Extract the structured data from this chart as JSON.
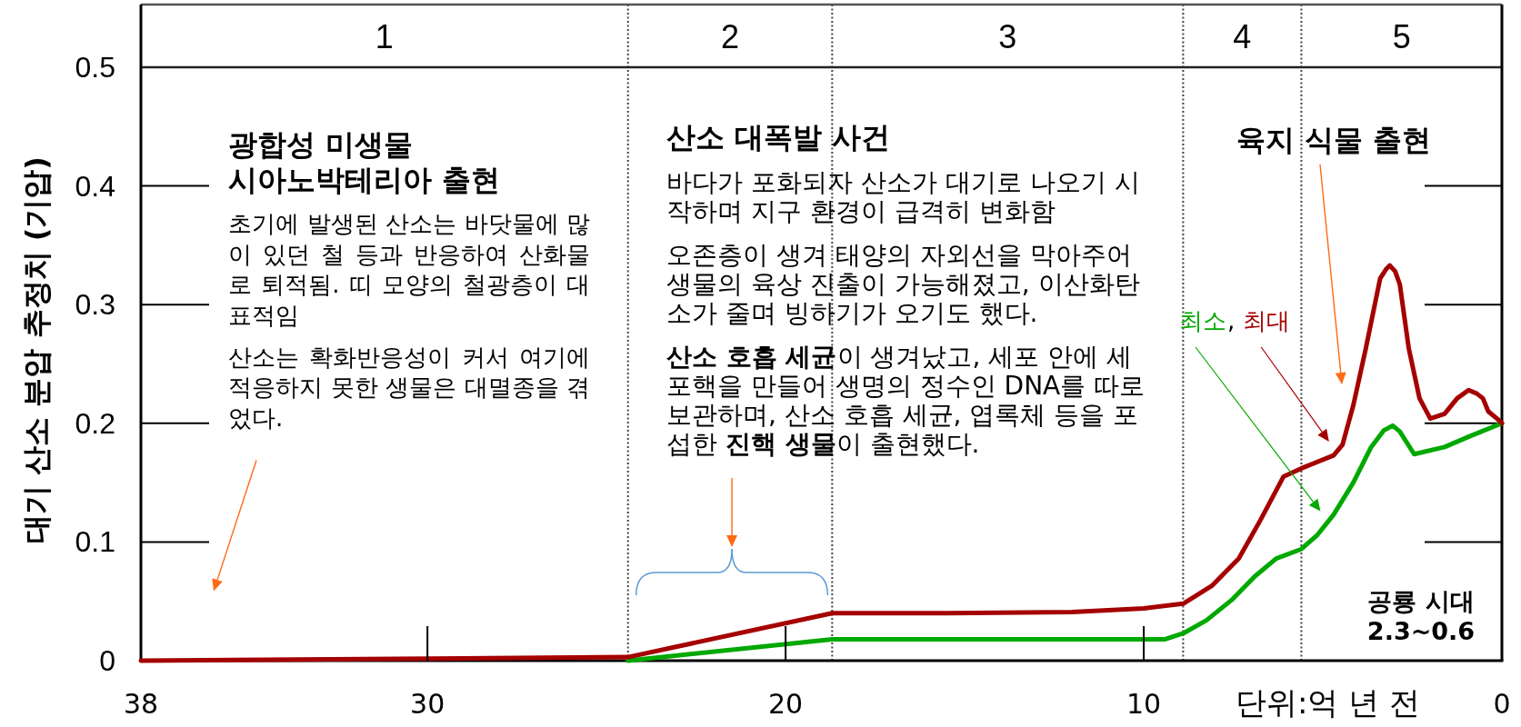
{
  "chart_data": {
    "type": "line",
    "xlabel": "단위:억 년 전",
    "ylabel": "대기 산소 분압 추정치 (기압)",
    "xlim": [
      38,
      0
    ],
    "ylim": [
      0,
      0.5
    ],
    "xticks": [
      38,
      30,
      20,
      10,
      0
    ],
    "yticks": [
      0,
      0.1,
      0.2,
      0.3,
      0.4,
      0.5
    ],
    "ref_lines": [
      {
        "axis": "x",
        "value": 24.4,
        "color": "#444444",
        "line_style": "dotted"
      },
      {
        "axis": "x",
        "value": 18.7,
        "color": "#444444",
        "line_style": "dotted"
      },
      {
        "axis": "x",
        "value": 8.9,
        "color": "#444444",
        "line_style": "dotted"
      },
      {
        "axis": "x",
        "value": 5.6,
        "color": "#444444",
        "line_style": "dotted"
      }
    ],
    "series": [
      {
        "name": "최소",
        "color": "#00a800",
        "x": [
          24.4,
          18.7,
          9.4,
          8.9,
          8.25,
          7.55,
          6.9,
          6.3,
          5.6,
          5.15,
          4.7,
          4.15,
          3.65,
          3.3,
          3.05,
          2.85,
          2.45,
          1.6,
          0.9,
          0
        ],
        "values": [
          0,
          0.018,
          0.018,
          0.023,
          0.034,
          0.051,
          0.071,
          0.086,
          0.094,
          0.106,
          0.123,
          0.15,
          0.18,
          0.194,
          0.198,
          0.193,
          0.174,
          0.18,
          0.189,
          0.2
        ]
      },
      {
        "name": "최대",
        "color": "#a50000",
        "x": [
          38,
          24.4,
          18.7,
          15.5,
          12,
          10,
          8.9,
          8.1,
          7.35,
          6.75,
          6.1,
          5.6,
          4.7,
          4.45,
          4.15,
          3.8,
          3.4,
          3.23,
          3.13,
          2.98,
          2.85,
          2.6,
          2.3,
          2.0,
          1.6,
          1.25,
          0.93,
          0.7,
          0.53,
          0.38,
          0.1,
          0
        ],
        "values": [
          0,
          0.003,
          0.04,
          0.04,
          0.041,
          0.044,
          0.048,
          0.063,
          0.086,
          0.118,
          0.155,
          0.162,
          0.173,
          0.182,
          0.215,
          0.263,
          0.322,
          0.33,
          0.333,
          0.328,
          0.317,
          0.263,
          0.221,
          0.204,
          0.208,
          0.221,
          0.228,
          0.225,
          0.221,
          0.21,
          0.203,
          0.2
        ]
      }
    ],
    "annotations": [
      "1",
      "2",
      "3",
      "4",
      "5",
      "광합성 미생물 시아노박테리아 출현",
      "초기에 발생된 산소는 바닷물에 많이 있던 철 등과 반응하여 산화물로 퇴적됨. 띠 모양의 철광층이 대표적임",
      "산소는 확화반응성이 커서 여기에 적응하지 못한 생물은 대멸종을 겪었다.",
      "산소 대폭발 사건",
      "바다가 포화되자 산소가 대기로 나오기 시작하며 지구 환경이 급격히 변화함",
      "오존층이 생겨 태양의 자외선을 막아주어 생물의 육상 진출이 가능해졌고, 이산화탄소가 줄며 빙하기가 오기도 했다.",
      "**산소 호흡 세균**이 생겨났고, 세포 안에 세포핵을 만들어 생명의 정수인 DNA를 따로 보관하며, 산소 호흡 세균, 엽록체 등을 포섭한 **진핵 생물**이 출현했다.",
      "육지 식물 출현",
      ",",
      "공룡 시대",
      "2.3~0.6"
    ]
  }
}
